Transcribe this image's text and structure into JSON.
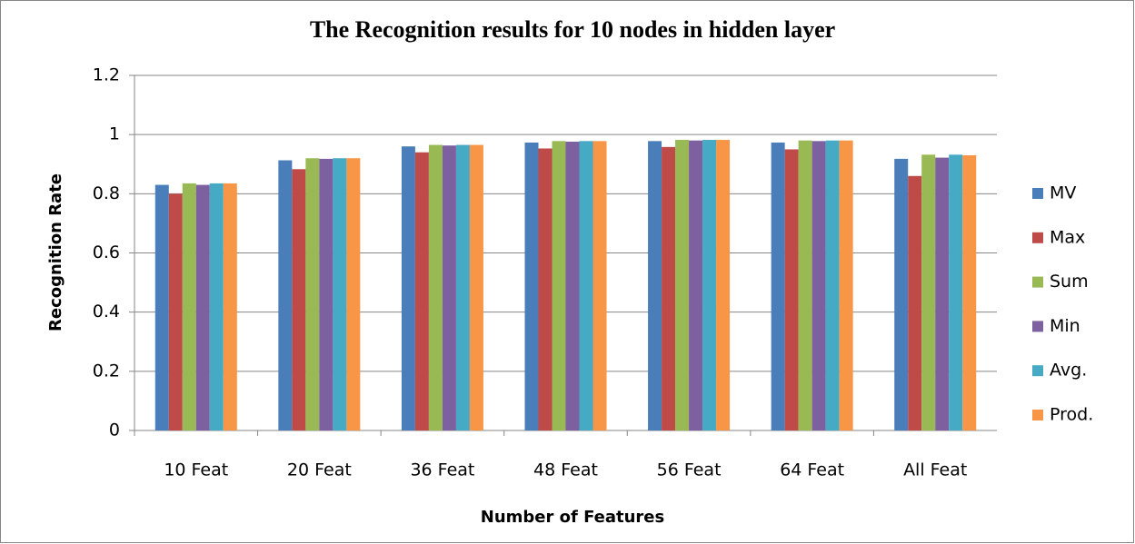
{
  "chart_data": {
    "type": "bar",
    "title": "The Recognition results for 10 nodes in hidden layer",
    "x_label": "Number of Features",
    "y_label": "Recognition Rate",
    "categories": [
      "10 Feat",
      "20 Feat",
      "36 Feat",
      "48 Feat",
      "56 Feat",
      "64 Feat",
      "All Feat"
    ],
    "series": [
      {
        "name": "MV",
        "color": "#4a7ebb",
        "values": [
          0.83,
          0.913,
          0.96,
          0.973,
          0.978,
          0.973,
          0.918
        ]
      },
      {
        "name": "Max",
        "color": "#be4b48",
        "values": [
          0.8,
          0.883,
          0.94,
          0.953,
          0.958,
          0.95,
          0.86
        ]
      },
      {
        "name": "Sum",
        "color": "#98b954",
        "values": [
          0.835,
          0.92,
          0.965,
          0.978,
          0.982,
          0.98,
          0.932
        ]
      },
      {
        "name": "Min",
        "color": "#7d60a0",
        "values": [
          0.83,
          0.918,
          0.963,
          0.976,
          0.98,
          0.978,
          0.922
        ]
      },
      {
        "name": "Avg.",
        "color": "#46aac5",
        "values": [
          0.835,
          0.92,
          0.965,
          0.978,
          0.982,
          0.98,
          0.932
        ]
      },
      {
        "name": "Prod.",
        "color": "#f79646",
        "values": [
          0.835,
          0.92,
          0.965,
          0.978,
          0.982,
          0.98,
          0.93
        ]
      }
    ],
    "ylim": [
      0,
      1.2
    ],
    "yticks": [
      0,
      0.2,
      0.4,
      0.6,
      0.8,
      1,
      1.2
    ],
    "grid": true,
    "legend": "right"
  }
}
